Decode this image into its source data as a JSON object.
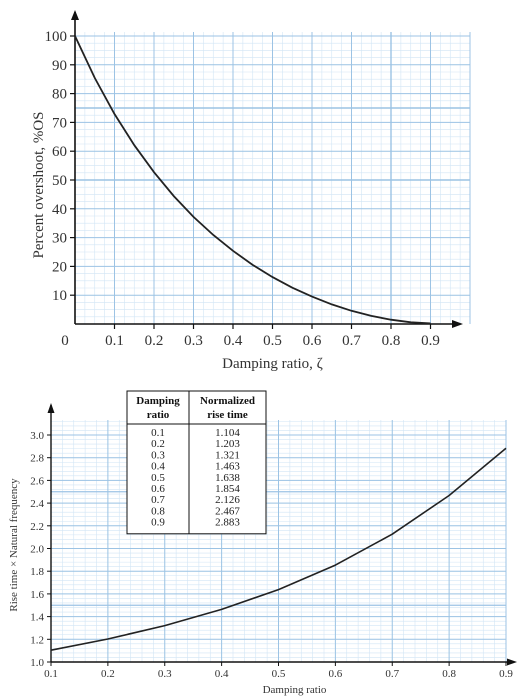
{
  "chart_data": [
    {
      "type": "line",
      "xlabel": "Damping ratio, ζ",
      "ylabel": "Percent overshoot, %OS",
      "xlim": [
        0,
        1.0
      ],
      "ylim": [
        0,
        100
      ],
      "x_ticks": [
        "0",
        "0.1",
        "0.2",
        "0.3",
        "0.4",
        "0.5",
        "0.6",
        "0.7",
        "0.8",
        "0.9"
      ],
      "y_ticks": [
        "10",
        "20",
        "30",
        "40",
        "50",
        "60",
        "70",
        "80",
        "90",
        "100"
      ],
      "grid": true,
      "series": [
        {
          "x": [
            0,
            0.05,
            0.1,
            0.15,
            0.2,
            0.25,
            0.3,
            0.35,
            0.4,
            0.45,
            0.5,
            0.55,
            0.6,
            0.65,
            0.7,
            0.75,
            0.8,
            0.85,
            0.9
          ],
          "values": [
            100,
            85.4,
            72.9,
            62.1,
            52.7,
            44.4,
            37.2,
            30.9,
            25.4,
            20.5,
            16.3,
            12.6,
            9.5,
            6.8,
            4.6,
            2.8,
            1.5,
            0.6,
            0.2
          ]
        }
      ]
    },
    {
      "type": "line",
      "xlabel": "Damping ratio",
      "ylabel": "Rise time × Natural frequency",
      "xlim": [
        0.1,
        0.9
      ],
      "ylim": [
        1.0,
        3.0
      ],
      "x_ticks": [
        "0.1",
        "0.2",
        "0.3",
        "0.4",
        "0.5",
        "0.6",
        "0.7",
        "0.8",
        "0.9"
      ],
      "y_ticks": [
        "1.0",
        "1.2",
        "1.4",
        "1.6",
        "1.8",
        "2.0",
        "2.2",
        "2.4",
        "2.6",
        "2.8",
        "3.0"
      ],
      "grid": true,
      "series": [
        {
          "x": [
            0.1,
            0.2,
            0.3,
            0.4,
            0.5,
            0.6,
            0.7,
            0.8,
            0.9
          ],
          "values": [
            1.104,
            1.203,
            1.321,
            1.463,
            1.638,
            1.854,
            2.126,
            2.467,
            2.883
          ]
        }
      ],
      "table": {
        "headers": [
          [
            "Damping",
            "ratio"
          ],
          [
            "Normalized",
            "rise time"
          ]
        ],
        "rows": [
          [
            "0.1",
            "1.104"
          ],
          [
            "0.2",
            "1.203"
          ],
          [
            "0.3",
            "1.321"
          ],
          [
            "0.4",
            "1.463"
          ],
          [
            "0.5",
            "1.638"
          ],
          [
            "0.6",
            "1.854"
          ],
          [
            "0.7",
            "2.126"
          ],
          [
            "0.8",
            "2.467"
          ],
          [
            "0.9",
            "2.883"
          ]
        ]
      }
    }
  ],
  "colors": {
    "grid_major": "#9cc3e4",
    "grid_minor": "#d2e5f5",
    "axis": "#111111",
    "curve": "#222222"
  }
}
